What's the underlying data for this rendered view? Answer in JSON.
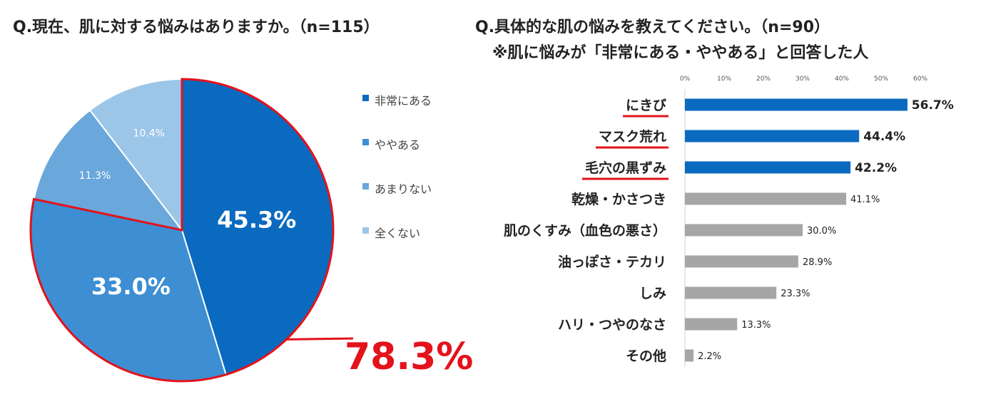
{
  "left_title": "Q.現在、肌に対する悩みはありますか。（n=115）",
  "right_title": "Q.具体的な肌の悩みを教えてください。（n=90）",
  "right_subtitle": "※肌に悩みが「非常にある・ややある」と回答した人",
  "combined_label": "78.3%",
  "colors": {
    "pie": [
      "#0a6abf",
      "#3d8ed2",
      "#6aa7db",
      "#9cc6e8"
    ],
    "highlight": "#e3121b",
    "bar_highlight": "#0a6abf",
    "bar_other": "#a6a6a6"
  },
  "chart_data": [
    {
      "type": "pie",
      "title": "Q.現在、肌に対する悩みはありますか。（n=115）",
      "labels": [
        "非常にある",
        "ややある",
        "あまりない",
        "全くない"
      ],
      "values": [
        45.3,
        33.0,
        11.3,
        10.4
      ],
      "value_labels": [
        "45.3%",
        "33.0%",
        "11.3%",
        "10.4%"
      ],
      "legend_position": "right",
      "annotation": "78.3%"
    },
    {
      "type": "bar",
      "orientation": "horizontal",
      "title": "Q.具体的な肌の悩みを教えてください。（n=90）",
      "subtitle": "※肌に悩みが「非常にある・ややある」と回答した人",
      "categories": [
        "にきび",
        "マスク荒れ",
        "毛穴の黒ずみ",
        "乾燥・かさつき",
        "肌のくすみ（血色の悪さ）",
        "油っぽさ・テカリ",
        "しみ",
        "ハリ・つやのなさ",
        "その他"
      ],
      "values": [
        56.7,
        44.4,
        42.2,
        41.1,
        30.0,
        28.9,
        23.3,
        13.3,
        2.2
      ],
      "value_labels": [
        "56.7%",
        "44.4%",
        "42.2%",
        "41.1%",
        "30.0%",
        "28.9%",
        "23.3%",
        "13.3%",
        "2.2%"
      ],
      "highlighted": [
        true,
        true,
        true,
        false,
        false,
        false,
        false,
        false,
        false
      ],
      "xlim": [
        0,
        60
      ],
      "xticks": [
        "0%",
        "10%",
        "20%",
        "30%",
        "40%",
        "50%",
        "60%"
      ],
      "grid": false
    }
  ]
}
